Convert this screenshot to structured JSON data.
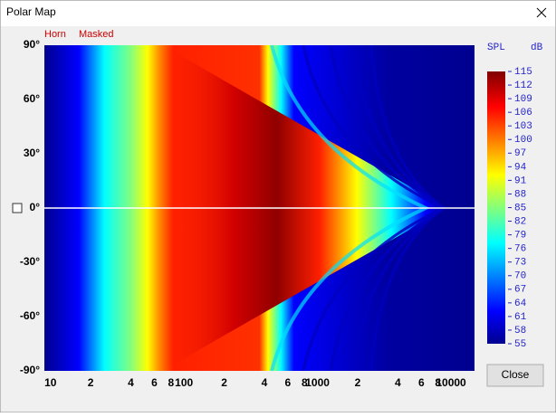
{
  "window": {
    "title": "Polar Map",
    "close_button": "Close"
  },
  "chart_data": {
    "type": "heatmap",
    "toggles": [
      "Horn",
      "Masked"
    ],
    "x_scale": "log",
    "xlim": [
      9,
      15000
    ],
    "xticks": [
      10,
      {
        "value": 20,
        "label": "2"
      },
      {
        "value": 40,
        "label": "4"
      },
      {
        "value": 60,
        "label": "6"
      },
      {
        "value": 80,
        "label": "8"
      },
      100,
      {
        "value": 200,
        "label": "2"
      },
      {
        "value": 400,
        "label": "4"
      },
      {
        "value": 600,
        "label": "6"
      },
      {
        "value": 800,
        "label": "8"
      },
      1000,
      {
        "value": 2000,
        "label": "2"
      },
      {
        "value": 4000,
        "label": "4"
      },
      {
        "value": 6000,
        "label": "6"
      },
      {
        "value": 8000,
        "label": "8"
      },
      10000
    ],
    "ylim": [
      -90,
      90
    ],
    "yticks": [
      {
        "value": 90,
        "label": "90°"
      },
      {
        "value": 60,
        "label": "60°"
      },
      {
        "value": 30,
        "label": "30°"
      },
      {
        "value": 0,
        "label": "0°"
      },
      {
        "value": -30,
        "label": "-30°"
      },
      {
        "value": -60,
        "label": "-60°"
      },
      {
        "value": -90,
        "label": "-90°"
      }
    ],
    "colorbar": {
      "label": "SPL",
      "unit": "dB",
      "clim": [
        55,
        115
      ],
      "ticks": [
        55,
        58,
        61,
        64,
        67,
        70,
        73,
        76,
        79,
        82,
        85,
        88,
        91,
        94,
        97,
        100,
        103,
        106,
        109,
        112,
        115
      ]
    }
  }
}
